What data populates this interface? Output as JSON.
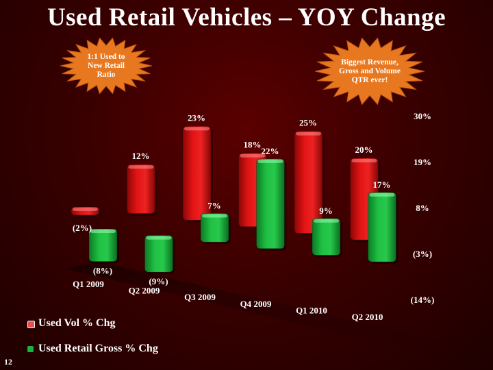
{
  "slide": {
    "title": "Used Retail Vehicles – YOY Change",
    "page_number": "12",
    "callout_left": "1:1 Used to New Retail Ratio",
    "callout_right": "Biggest Revenue, Gross and Volume QTR ever!"
  },
  "colors": {
    "red": "#d40d0d",
    "green": "#18b53a",
    "burst": "#e87820"
  },
  "chart_data": {
    "type": "bar",
    "categories": [
      "Q1 2009",
      "Q2 2009",
      "Q3 2009",
      "Q4 2009",
      "Q1 2010",
      "Q2 2010"
    ],
    "series": [
      {
        "name": "Used Vol % Chg",
        "values": [
          -2,
          12,
          23,
          18,
          25,
          20
        ],
        "labels": [
          "(2%)",
          "12%",
          "23%",
          "18%",
          "25%",
          "20%"
        ]
      },
      {
        "name": "Used Retail Gross % Chg",
        "values": [
          -8,
          -9,
          7,
          22,
          9,
          17
        ],
        "labels": [
          "(8%)",
          "(9%)",
          "7%",
          "22%",
          "9%",
          "17%"
        ]
      }
    ],
    "ytick_labels": [
      "30%",
      "19%",
      "8%",
      "(3%)",
      "(14%)"
    ],
    "yticks": [
      30,
      19,
      8,
      -3,
      -14
    ],
    "ylim": [
      -14,
      30
    ],
    "legend": "bottom-left",
    "grid": false
  }
}
